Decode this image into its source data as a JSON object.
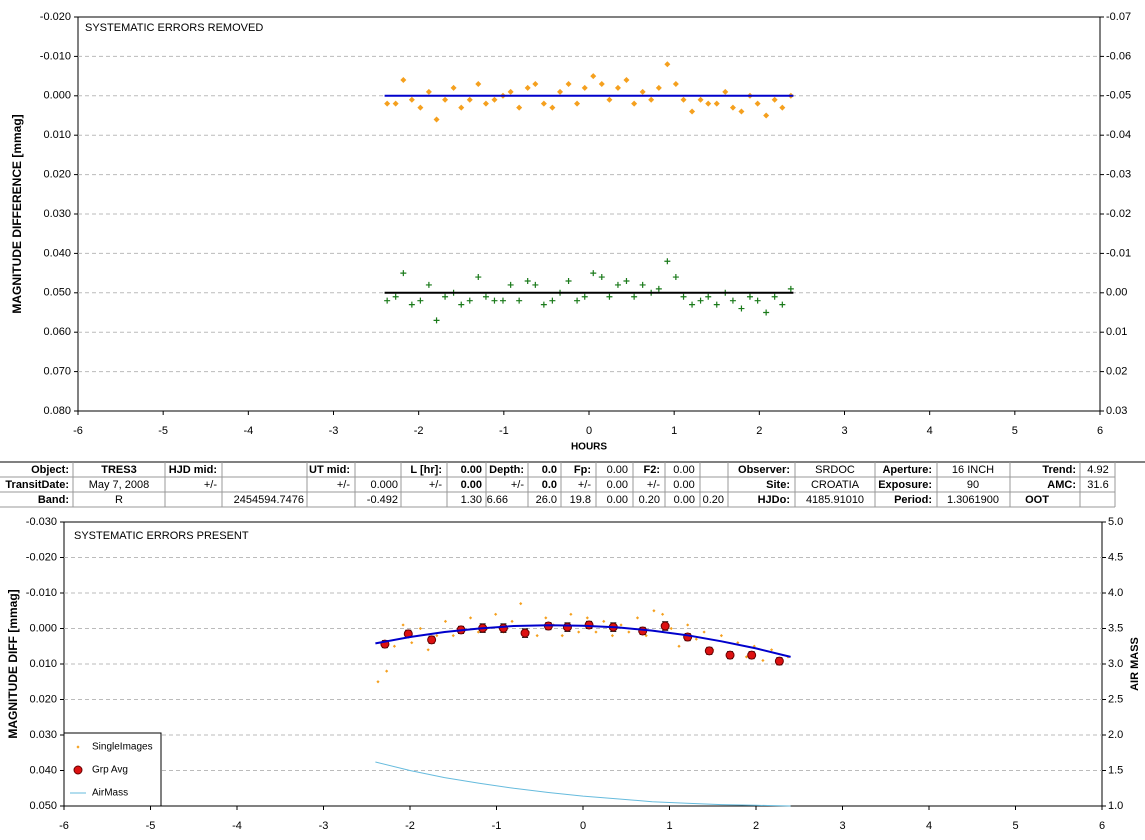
{
  "chart_data": [
    {
      "type": "scatter",
      "title": "SYSTEMATIC ERRORS REMOVED",
      "xlabel": "HOURS",
      "ylabel": "MAGNITUDE DIFFERENCE [mmag]",
      "xlim": [
        -6,
        6
      ],
      "xticks": [
        -6,
        -5,
        -4,
        -3,
        -2,
        -1,
        0,
        1,
        2,
        3,
        4,
        5,
        6
      ],
      "ylim": [
        -0.02,
        0.08
      ],
      "y_inverted": true,
      "yticks": [
        {
          "value": -0.02,
          "label": "-0.020"
        },
        {
          "value": -0.01,
          "label": "-0.010"
        },
        {
          "value": 0,
          "label": "0.000"
        },
        {
          "value": 0.01,
          "label": "0.010"
        },
        {
          "value": 0.02,
          "label": "0.020"
        },
        {
          "value": 0.03,
          "label": "0.030"
        },
        {
          "value": 0.04,
          "label": "0.040"
        },
        {
          "value": 0.05,
          "label": "0.050"
        },
        {
          "value": 0.06,
          "label": "0.060"
        },
        {
          "value": 0.07,
          "label": "0.070"
        },
        {
          "value": 0.08,
          "label": "0.080"
        }
      ],
      "y2lim": [
        -0.07,
        0.03
      ],
      "y2_inverted": true,
      "y2ticks": [
        -0.07,
        -0.06,
        -0.05,
        -0.04,
        -0.03,
        -0.02,
        -0.01,
        {
          "value": 0,
          "label": "0.00"
        },
        0.01,
        0.02,
        0.03
      ],
      "grid": true,
      "x": [
        -2.37,
        -2.27,
        -2.18,
        -2.08,
        -1.98,
        -1.88,
        -1.79,
        -1.69,
        -1.59,
        -1.5,
        -1.4,
        -1.3,
        -1.21,
        -1.11,
        -1.01,
        -0.92,
        -0.82,
        -0.72,
        -0.63,
        -0.53,
        -0.43,
        -0.34,
        -0.24,
        -0.14,
        -0.05,
        0.05,
        0.15,
        0.24,
        0.34,
        0.44,
        0.53,
        0.63,
        0.73,
        0.82,
        0.92,
        1.02,
        1.11,
        1.21,
        1.31,
        1.4,
        1.5,
        1.6,
        1.69,
        1.79,
        1.89,
        1.98,
        2.08,
        2.18,
        2.27,
        2.37
      ],
      "series": [
        {
          "type": "scatter",
          "marker": "diamond",
          "color": "#f5a01e",
          "values": [
            0.002,
            0.002,
            -0.004,
            0.001,
            0.003,
            -0.001,
            0.006,
            0.001,
            -0.002,
            0.003,
            0.001,
            -0.003,
            0.002,
            0.001,
            0.0,
            -0.001,
            0.003,
            -0.002,
            -0.003,
            0.002,
            0.003,
            -0.001,
            -0.003,
            0.002,
            -0.002,
            -0.005,
            -0.003,
            0.001,
            -0.002,
            -0.004,
            0.002,
            -0.001,
            0.001,
            -0.002,
            -0.008,
            -0.003,
            0.001,
            0.004,
            0.001,
            0.002,
            0.002,
            -0.001,
            0.003,
            0.004,
            0.0,
            0.002,
            0.005,
            0.001,
            0.003,
            0.0
          ]
        },
        {
          "type": "scatter",
          "marker": "plus",
          "color": "#1a7a1a",
          "axis": "y2",
          "values": [
            0.002,
            0.001,
            -0.005,
            0.003,
            0.002,
            -0.002,
            0.007,
            0.001,
            0.0,
            0.003,
            0.002,
            -0.004,
            0.001,
            0.002,
            0.002,
            -0.002,
            0.002,
            -0.003,
            -0.002,
            0.003,
            0.002,
            0.0,
            -0.003,
            0.002,
            0.001,
            -0.005,
            -0.004,
            0.001,
            -0.002,
            -0.003,
            0.001,
            -0.002,
            0.0,
            -0.001,
            -0.008,
            -0.004,
            0.001,
            0.003,
            0.002,
            0.001,
            0.003,
            0.0,
            0.002,
            0.004,
            0.001,
            0.002,
            0.005,
            0.001,
            0.003,
            -0.001
          ]
        },
        {
          "type": "line",
          "color": "#0000cc",
          "x": [
            -2.4,
            2.4
          ],
          "values": [
            0,
            0
          ]
        },
        {
          "type": "line",
          "color": "#000000",
          "axis": "y2",
          "x": [
            -2.4,
            2.4
          ],
          "values": [
            0,
            0
          ]
        }
      ]
    },
    {
      "type": "scatter",
      "title": "SYSTEMATIC ERRORS PRESENT",
      "ylabel": "MAGNITUDE DIFF [mmag]",
      "y2label": "AIR MASS",
      "xlim": [
        -6,
        6
      ],
      "xticks": [
        -6,
        -5,
        -4,
        -3,
        -2,
        -1,
        0,
        1,
        2,
        3,
        4,
        5,
        6
      ],
      "ylim": [
        -0.03,
        0.05
      ],
      "y_inverted": true,
      "yticks": [
        {
          "value": -0.03,
          "label": "-0.030"
        },
        {
          "value": -0.02,
          "label": "-0.020"
        },
        {
          "value": -0.01,
          "label": "-0.010"
        },
        {
          "value": 0,
          "label": "0.000"
        },
        {
          "value": 0.01,
          "label": "0.010"
        },
        {
          "value": 0.02,
          "label": "0.020"
        },
        {
          "value": 0.03,
          "label": "0.030"
        },
        {
          "value": 0.04,
          "label": "0.040"
        },
        {
          "value": 0.05,
          "label": "0.050"
        }
      ],
      "y2lim": [
        1,
        5
      ],
      "y2ticks": [
        {
          "value": 1,
          "label": "1.0"
        },
        1.5,
        {
          "value": 2,
          "label": "2.0"
        },
        2.5,
        {
          "value": 3,
          "label": "3.0"
        },
        3.5,
        {
          "value": 4,
          "label": "4.0"
        },
        4.5,
        {
          "value": 5,
          "label": "5.0"
        }
      ],
      "grid": true,
      "legend": "lower left",
      "x": [
        -2.37,
        -2.27,
        -2.18,
        -2.08,
        -1.98,
        -1.88,
        -1.79,
        -1.69,
        -1.59,
        -1.5,
        -1.4,
        -1.3,
        -1.21,
        -1.11,
        -1.01,
        -0.92,
        -0.82,
        -0.72,
        -0.63,
        -0.53,
        -0.43,
        -0.34,
        -0.24,
        -0.14,
        -0.05,
        0.05,
        0.15,
        0.24,
        0.34,
        0.44,
        0.53,
        0.63,
        0.73,
        0.82,
        0.92,
        1.02,
        1.11,
        1.21,
        1.31,
        1.4,
        1.5,
        1.6,
        1.69,
        1.79,
        1.89,
        1.98,
        2.08,
        2.18,
        2.27,
        2.37
      ],
      "series": [
        {
          "type": "scatter",
          "marker": "small",
          "name": "SingleImages",
          "color": "#f5a01e",
          "values": [
            0.015,
            0.012,
            0.005,
            -0.001,
            0.004,
            0.0,
            0.006,
            0.002,
            -0.002,
            0.002,
            0.001,
            -0.003,
            0.001,
            0.0,
            -0.004,
            0.001,
            -0.002,
            -0.007,
            0.001,
            0.002,
            -0.003,
            -0.001,
            0.002,
            -0.004,
            0.001,
            -0.003,
            0.001,
            -0.002,
            0.002,
            -0.001,
            0.001,
            -0.003,
            0.002,
            -0.005,
            -0.004,
            0.0,
            0.005,
            -0.001,
            0.003,
            0.001,
            0.006,
            0.002,
            0.007,
            0.004,
            0.008,
            0.005,
            0.009,
            0.006,
            0.01,
            0.008
          ]
        },
        {
          "type": "scatter",
          "marker": "circle",
          "name": "Grp Avg",
          "color": "#dd1111",
          "x": [
            -2.29,
            -2.02,
            -1.75,
            -1.41,
            -1.16,
            -0.92,
            -0.67,
            -0.4,
            -0.18,
            0.07,
            0.35,
            0.69,
            0.95,
            1.21,
            1.46,
            1.7,
            1.95,
            2.27
          ],
          "values": [
            0.0044,
            0.0015,
            0.0032,
            0.0004,
            -0.0001,
            -0.0001,
            0.0013,
            -0.0007,
            -0.0004,
            -0.001,
            -0.0004,
            0.0007,
            -0.0007,
            0.0024,
            0.0063,
            0.0075,
            0.0075,
            0.0092
          ],
          "errors": [
            0.001,
            0.001,
            0.001,
            0.001,
            0.0012,
            0.0012,
            0.0012,
            0.001,
            0.0012,
            0.001,
            0.0012,
            0.001,
            0.0012,
            0.001,
            0.001,
            0.001,
            0.001,
            0.001
          ]
        },
        {
          "type": "line",
          "color": "#0000cc",
          "x": [
            -2.4,
            -2.0,
            -1.6,
            -1.2,
            -0.8,
            -0.4,
            0,
            0.4,
            0.8,
            1.2,
            1.6,
            2.0,
            2.4
          ],
          "values": [
            0.0042,
            0.0024,
            0.001,
            0.0,
            -0.0007,
            -0.0009,
            -0.0008,
            -0.0003,
            0.0006,
            0.0019,
            0.0036,
            0.0056,
            0.008
          ]
        },
        {
          "type": "line",
          "name": "AirMass",
          "color": "#66bbdd",
          "axis": "y2",
          "x": [
            -2.4,
            -2.0,
            -1.6,
            -1.2,
            -0.8,
            -0.4,
            0,
            0.4,
            0.8,
            1.2,
            1.6,
            2.0,
            2.4
          ],
          "values": [
            1.62,
            1.5,
            1.4,
            1.32,
            1.25,
            1.19,
            1.14,
            1.1,
            1.06,
            1.04,
            1.02,
            1.01,
            1.0
          ]
        }
      ]
    }
  ],
  "table": {
    "rows": [
      [
        "Object:",
        "TRES3",
        "HJD mid:",
        "UT mid:",
        "L [hr]:",
        "0.00",
        "Depth:",
        "0.0",
        "Fp:",
        "0.00",
        "F2:",
        "0.00",
        "Observer:",
        "SRDOC",
        "Aperture:",
        "16 INCH",
        "Trend:",
        "4.92"
      ],
      [
        "TransitDate:",
        "May 7, 2008",
        "+/-",
        "+/-",
        "0.000",
        "+/-",
        "0.00",
        "+/-",
        "0.0",
        "+/-",
        "0.00",
        "+/-",
        "0.00",
        "Site:",
        "CROATIA",
        "Exposure:",
        "90",
        "AMC:",
        "31.6"
      ],
      [
        "Band:",
        "R",
        "2454594.7476",
        "-0.492",
        "1.30",
        "6.66",
        "26.0",
        "19.8",
        "0.00",
        "0.20",
        "0.00",
        "0.20",
        "HJDo:",
        "4185.91010",
        "Period:",
        "1.3061900",
        "OOT"
      ]
    ]
  }
}
